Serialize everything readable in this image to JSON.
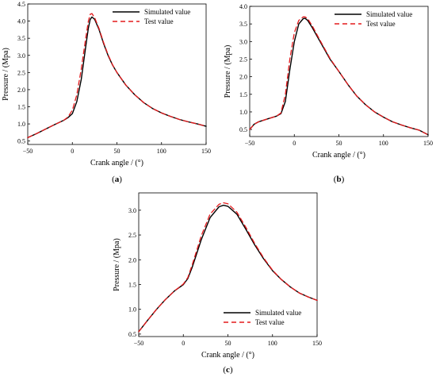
{
  "legend": {
    "simulated": "Simulated value",
    "test": "Test value"
  },
  "colors": {
    "simulated": "#000000",
    "test": "#e41a1c"
  },
  "chart_data": [
    {
      "type": "line",
      "panel_label": "a",
      "xlabel": "Crank angle / (°)",
      "ylabel": "Pressure / (Mpa)",
      "xlim": [
        -50,
        150
      ],
      "ylim": [
        0.4,
        4.5
      ],
      "xticks": [
        "−50",
        "0",
        "50",
        "100",
        "150"
      ],
      "yticks": [
        "0.5",
        "1.0",
        "1.5",
        "2.0",
        "2.5",
        "3.0",
        "3.5",
        "4.0",
        "4.5"
      ],
      "legend_position": "top-right",
      "series": [
        {
          "name": "Simulated value",
          "x": [
            -50,
            -40,
            -30,
            -20,
            -10,
            -5,
            0,
            5,
            10,
            15,
            18,
            20,
            22,
            25,
            30,
            35,
            40,
            45,
            50,
            60,
            70,
            80,
            90,
            100,
            110,
            120,
            130,
            140,
            150
          ],
          "y": [
            0.6,
            0.72,
            0.85,
            0.98,
            1.1,
            1.18,
            1.3,
            1.65,
            2.3,
            3.25,
            3.8,
            4.05,
            4.12,
            4.05,
            3.75,
            3.35,
            3.0,
            2.72,
            2.5,
            2.13,
            1.85,
            1.62,
            1.45,
            1.32,
            1.22,
            1.13,
            1.06,
            1.0,
            0.93
          ]
        },
        {
          "name": "Test value",
          "x": [
            -50,
            -40,
            -30,
            -20,
            -10,
            -5,
            0,
            5,
            10,
            15,
            18,
            20,
            22,
            25,
            30,
            35,
            40,
            45,
            50,
            60,
            70,
            80,
            90,
            100,
            110,
            120,
            130,
            140,
            150
          ],
          "y": [
            0.6,
            0.72,
            0.85,
            0.98,
            1.1,
            1.2,
            1.4,
            1.85,
            2.6,
            3.5,
            4.0,
            4.2,
            4.22,
            4.1,
            3.78,
            3.38,
            3.02,
            2.73,
            2.5,
            2.13,
            1.85,
            1.62,
            1.45,
            1.32,
            1.22,
            1.13,
            1.06,
            1.0,
            0.93
          ]
        }
      ]
    },
    {
      "type": "line",
      "panel_label": "b",
      "xlabel": "Crank angle / (°)",
      "ylabel": "Pressure / (Mpa)",
      "xlim": [
        -50,
        150
      ],
      "ylim": [
        0.3,
        4.0
      ],
      "xticks": [
        "−50",
        "0",
        "50",
        "100",
        "150"
      ],
      "yticks": [
        "0.5",
        "1.0",
        "1.5",
        "2.0",
        "2.5",
        "3.0",
        "3.5",
        "4.0"
      ],
      "legend_position": "top-right",
      "series": [
        {
          "name": "Simulated value",
          "x": [
            -50,
            -45,
            -40,
            -30,
            -20,
            -15,
            -10,
            -5,
            0,
            5,
            10,
            12,
            15,
            20,
            30,
            40,
            50,
            60,
            70,
            80,
            90,
            100,
            110,
            120,
            130,
            140,
            150
          ],
          "y": [
            0.5,
            0.65,
            0.72,
            0.8,
            0.88,
            0.95,
            1.3,
            2.2,
            3.0,
            3.5,
            3.65,
            3.66,
            3.6,
            3.4,
            2.95,
            2.5,
            2.15,
            1.78,
            1.45,
            1.2,
            1.0,
            0.85,
            0.72,
            0.63,
            0.55,
            0.48,
            0.35
          ]
        },
        {
          "name": "Test value",
          "x": [
            -50,
            -45,
            -40,
            -30,
            -20,
            -15,
            -10,
            -5,
            0,
            5,
            10,
            12,
            15,
            20,
            30,
            40,
            50,
            60,
            70,
            80,
            90,
            100,
            110,
            120,
            130,
            140,
            150
          ],
          "y": [
            0.5,
            0.65,
            0.72,
            0.8,
            0.88,
            0.97,
            1.5,
            2.5,
            3.25,
            3.6,
            3.7,
            3.7,
            3.65,
            3.45,
            2.98,
            2.52,
            2.15,
            1.78,
            1.45,
            1.2,
            1.0,
            0.85,
            0.72,
            0.63,
            0.55,
            0.48,
            0.35
          ]
        }
      ]
    },
    {
      "type": "line",
      "panel_label": "c",
      "xlabel": "Crank angle / (°)",
      "ylabel": "Pressure / (Mpa)",
      "xlim": [
        -50,
        150
      ],
      "ylim": [
        0.45,
        3.35
      ],
      "xticks": [
        "−50",
        "0",
        "50",
        "100",
        "150"
      ],
      "yticks": [
        "0.5",
        "1.0",
        "1.5",
        "2.0",
        "2.5",
        "3.0"
      ],
      "legend_position": "bottom-right",
      "series": [
        {
          "name": "Simulated value",
          "x": [
            -50,
            -40,
            -30,
            -20,
            -10,
            0,
            5,
            10,
            20,
            30,
            40,
            45,
            50,
            60,
            70,
            80,
            90,
            100,
            110,
            120,
            130,
            140,
            150
          ],
          "y": [
            0.55,
            0.78,
            1.0,
            1.2,
            1.37,
            1.5,
            1.62,
            1.85,
            2.4,
            2.85,
            3.07,
            3.1,
            3.08,
            2.92,
            2.62,
            2.3,
            2.02,
            1.78,
            1.6,
            1.45,
            1.33,
            1.25,
            1.18
          ]
        },
        {
          "name": "Test value",
          "x": [
            -50,
            -40,
            -30,
            -20,
            -10,
            0,
            5,
            10,
            20,
            30,
            40,
            45,
            50,
            60,
            70,
            80,
            90,
            100,
            110,
            120,
            130,
            140,
            150
          ],
          "y": [
            0.55,
            0.78,
            1.0,
            1.2,
            1.37,
            1.51,
            1.64,
            1.9,
            2.48,
            2.92,
            3.12,
            3.15,
            3.13,
            2.96,
            2.66,
            2.33,
            2.04,
            1.79,
            1.6,
            1.45,
            1.33,
            1.25,
            1.18
          ]
        }
      ]
    }
  ]
}
